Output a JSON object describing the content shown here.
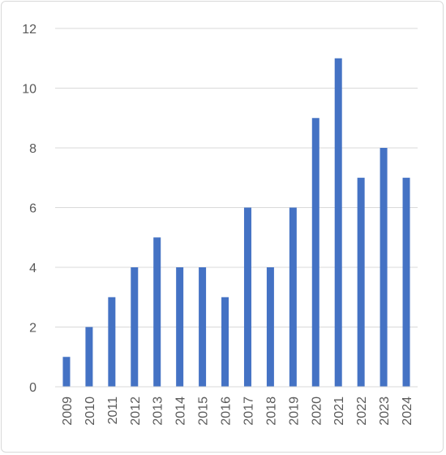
{
  "chart_data": {
    "type": "bar",
    "title": "",
    "xlabel": "",
    "ylabel": "",
    "categories": [
      "2009",
      "2010",
      "2011",
      "2012",
      "2013",
      "2014",
      "2015",
      "2016",
      "2017",
      "2018",
      "2019",
      "2020",
      "2021",
      "2022",
      "2023",
      "2024"
    ],
    "values": [
      1,
      2,
      3,
      4,
      5,
      4,
      4,
      3,
      6,
      4,
      6,
      9,
      11,
      7,
      8,
      7
    ],
    "ylim": [
      0,
      12
    ],
    "yticks": [
      "0",
      "2",
      "4",
      "6",
      "8",
      "10",
      "12"
    ],
    "grid": true,
    "legend": "none",
    "colors": {
      "bar": "#4472c4",
      "grid": "#d9d9d9",
      "axis": "#d9d9d9",
      "text": "#595959"
    }
  }
}
